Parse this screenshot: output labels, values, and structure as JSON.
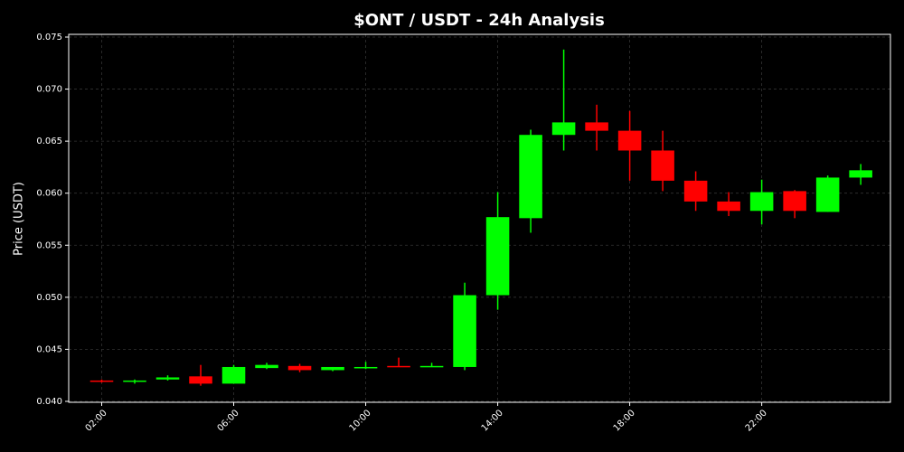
{
  "chart_data": {
    "type": "candlestick",
    "title": "$ONT / USDT - 24h Analysis",
    "y_label": "Price (USDT)",
    "x": [
      2,
      3,
      4,
      5,
      6,
      7,
      8,
      9,
      10,
      11,
      12,
      13,
      14,
      15,
      16,
      17,
      18,
      19,
      20,
      21,
      22,
      23,
      24,
      25
    ],
    "open": [
      0.042,
      0.0419,
      0.0421,
      0.0424,
      0.0417,
      0.0432,
      0.0434,
      0.043,
      0.0432,
      0.0434,
      0.0433,
      0.0433,
      0.0502,
      0.0576,
      0.0656,
      0.0668,
      0.066,
      0.0641,
      0.0612,
      0.0592,
      0.0583,
      0.0602,
      0.0582,
      0.0615
    ],
    "high": [
      0.0421,
      0.0421,
      0.0425,
      0.0435,
      0.0435,
      0.0437,
      0.0436,
      0.0433,
      0.0438,
      0.0442,
      0.0437,
      0.0514,
      0.0601,
      0.0661,
      0.0738,
      0.0685,
      0.0679,
      0.066,
      0.0621,
      0.0601,
      0.0613,
      0.0603,
      0.0617,
      0.0628
    ],
    "low": [
      0.0418,
      0.0417,
      0.042,
      0.0415,
      0.0417,
      0.0431,
      0.0428,
      0.0429,
      0.0431,
      0.0433,
      0.0433,
      0.043,
      0.0488,
      0.0562,
      0.0641,
      0.0641,
      0.0612,
      0.0602,
      0.0583,
      0.0578,
      0.057,
      0.0576,
      0.0582,
      0.0608
    ],
    "close": [
      0.0419,
      0.042,
      0.0423,
      0.0417,
      0.0433,
      0.0435,
      0.043,
      0.0433,
      0.0433,
      0.0433,
      0.0434,
      0.0502,
      0.0577,
      0.0656,
      0.0668,
      0.066,
      0.0641,
      0.0612,
      0.0592,
      0.0583,
      0.0601,
      0.0583,
      0.0615,
      0.0622
    ],
    "up_color": "#00ff00",
    "down_color": "#ff0000",
    "xlim": [
      1.0,
      25.9
    ],
    "xticks": [
      {
        "value": 2,
        "label": "02:00"
      },
      {
        "value": 6,
        "label": "06:00"
      },
      {
        "value": 10,
        "label": "10:00"
      },
      {
        "value": 14,
        "label": "14:00"
      },
      {
        "value": 18,
        "label": "18:00"
      },
      {
        "value": 22,
        "label": "22:00"
      }
    ],
    "ylim": [
      0.03991,
      0.07526
    ],
    "yticks": [
      {
        "value": 0.04,
        "label": "0.040"
      },
      0.045,
      {
        "value": 0.05,
        "label": "0.050"
      },
      0.055,
      {
        "value": 0.06,
        "label": "0.060"
      },
      0.065,
      {
        "value": 0.07,
        "label": "0.070"
      },
      0.075
    ],
    "grid": true
  }
}
